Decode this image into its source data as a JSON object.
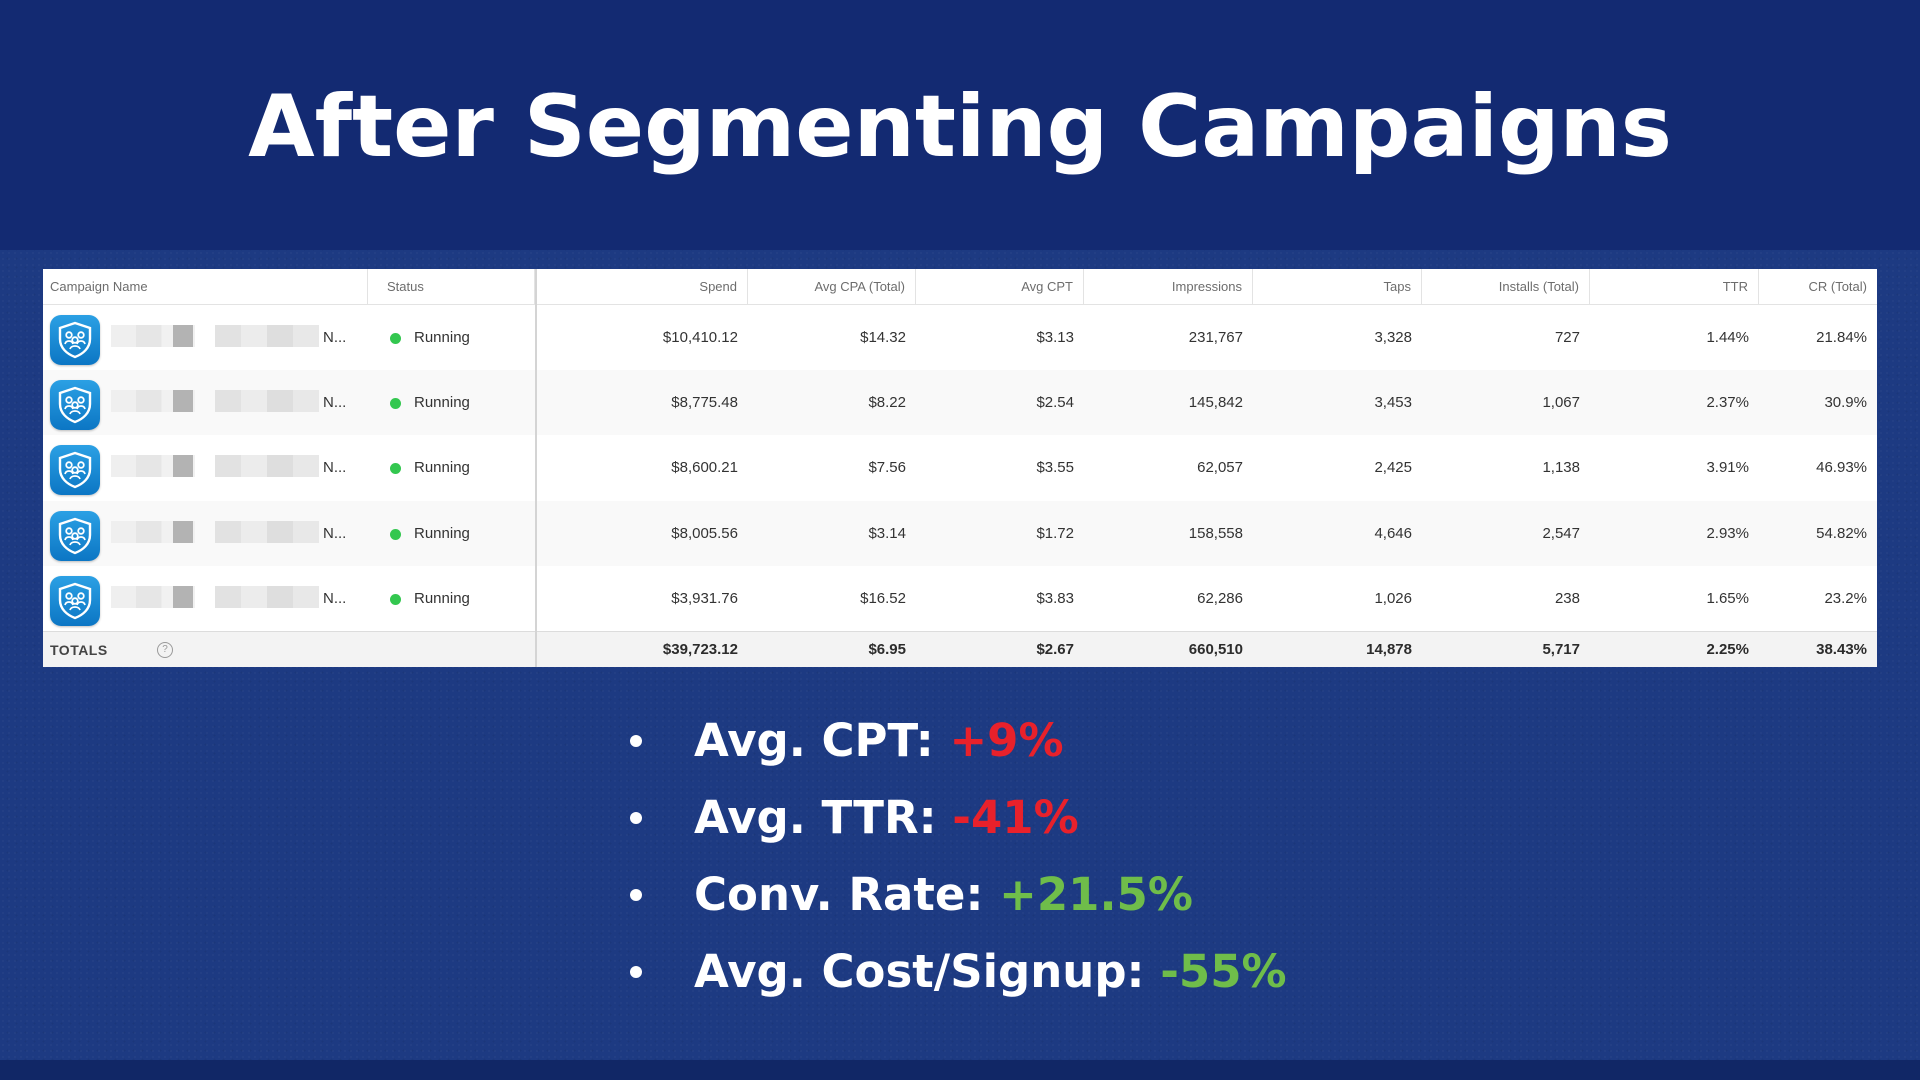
{
  "slide": {
    "title": "After Segmenting Campaigns"
  },
  "colors": {
    "background": "#1d3a82",
    "title_band": "#132a72",
    "negative": "#e8212b",
    "positive": "#6fbd4a",
    "status_running": "#33c74f",
    "app_icon": "#1a8fd8"
  },
  "table": {
    "headers": {
      "campaign_name": "Campaign Name",
      "status": "Status",
      "spend": "Spend",
      "avg_cpa": "Avg CPA (Total)",
      "avg_cpt": "Avg CPT",
      "impressions": "Impressions",
      "taps": "Taps",
      "installs": "Installs (Total)",
      "ttr": "TTR",
      "cr": "CR (Total)"
    },
    "rows": [
      {
        "name_suffix": "N...",
        "status": "Running",
        "spend": "$10,410.12",
        "avg_cpa": "$14.32",
        "avg_cpt": "$3.13",
        "impressions": "231,767",
        "taps": "3,328",
        "installs": "727",
        "ttr": "1.44%",
        "cr": "21.84%"
      },
      {
        "name_suffix": "N...",
        "status": "Running",
        "spend": "$8,775.48",
        "avg_cpa": "$8.22",
        "avg_cpt": "$2.54",
        "impressions": "145,842",
        "taps": "3,453",
        "installs": "1,067",
        "ttr": "2.37%",
        "cr": "30.9%"
      },
      {
        "name_suffix": "N...",
        "status": "Running",
        "spend": "$8,600.21",
        "avg_cpa": "$7.56",
        "avg_cpt": "$3.55",
        "impressions": "62,057",
        "taps": "2,425",
        "installs": "1,138",
        "ttr": "3.91%",
        "cr": "46.93%"
      },
      {
        "name_suffix": "N...",
        "status": "Running",
        "spend": "$8,005.56",
        "avg_cpa": "$3.14",
        "avg_cpt": "$1.72",
        "impressions": "158,558",
        "taps": "4,646",
        "installs": "2,547",
        "ttr": "2.93%",
        "cr": "54.82%"
      },
      {
        "name_suffix": "N...",
        "status": "Running",
        "spend": "$3,931.76",
        "avg_cpa": "$16.52",
        "avg_cpt": "$3.83",
        "impressions": "62,286",
        "taps": "1,026",
        "installs": "238",
        "ttr": "1.65%",
        "cr": "23.2%"
      }
    ],
    "totals": {
      "label": "TOTALS",
      "help_icon": "?",
      "spend": "$39,723.12",
      "avg_cpa": "$6.95",
      "avg_cpt": "$2.67",
      "impressions": "660,510",
      "taps": "14,878",
      "installs": "5,717",
      "ttr": "2.25%",
      "cr": "38.43%"
    }
  },
  "bullets": [
    {
      "label": "Avg. CPT:",
      "value": "+9%",
      "tone": "negative"
    },
    {
      "label": "Avg. TTR:",
      "value": "-41%",
      "tone": "negative"
    },
    {
      "label": "Conv. Rate:",
      "value": "+21.5%",
      "tone": "positive"
    },
    {
      "label": "Avg. Cost/Signup:",
      "value": "-55%",
      "tone": "positive"
    }
  ]
}
